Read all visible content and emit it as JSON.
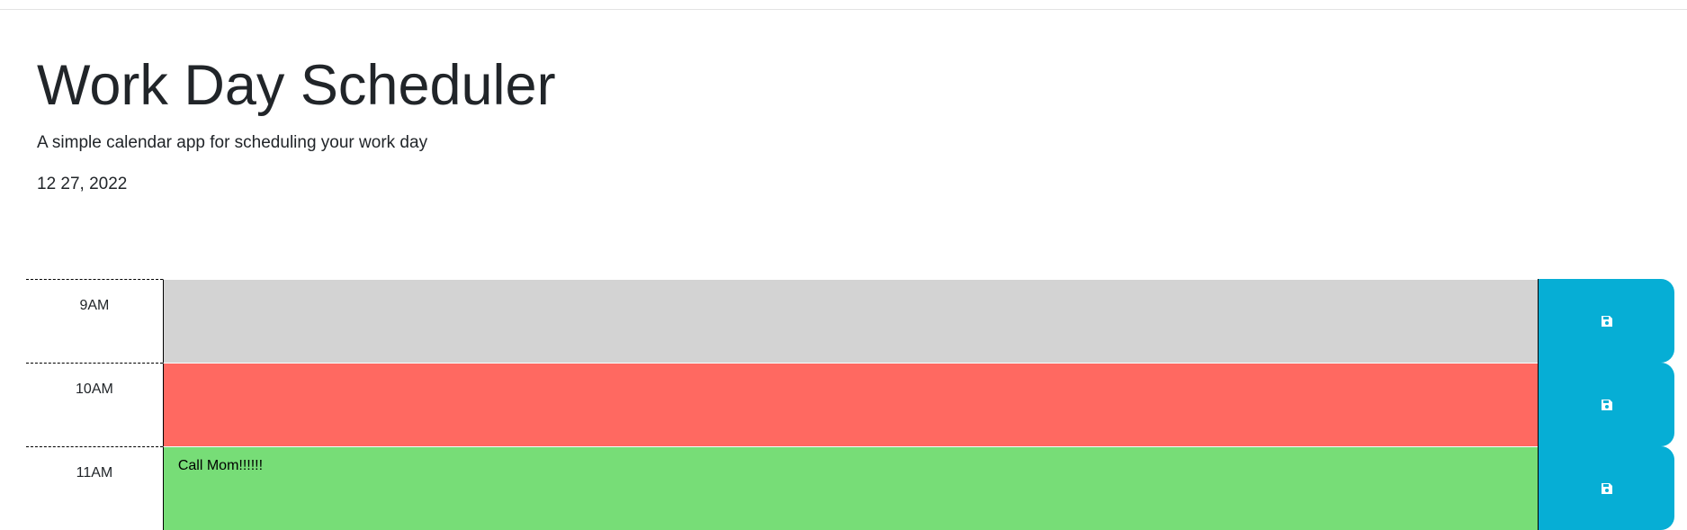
{
  "header": {
    "title": "Work Day Scheduler",
    "subtitle": "A simple calendar app for scheduling your work day",
    "current_date": "12 27, 2022"
  },
  "colors": {
    "past": "#d3d3d3",
    "present": "#ff6961",
    "future": "#77dd77",
    "save_button": "#06aed5"
  },
  "time_blocks": [
    {
      "hour": "9AM",
      "text": "",
      "state": "past",
      "save_icon": "save-icon"
    },
    {
      "hour": "10AM",
      "text": "",
      "state": "present",
      "save_icon": "save-icon"
    },
    {
      "hour": "11AM",
      "text": "Call Mom!!!!!!",
      "state": "future",
      "save_icon": "save-icon"
    }
  ]
}
